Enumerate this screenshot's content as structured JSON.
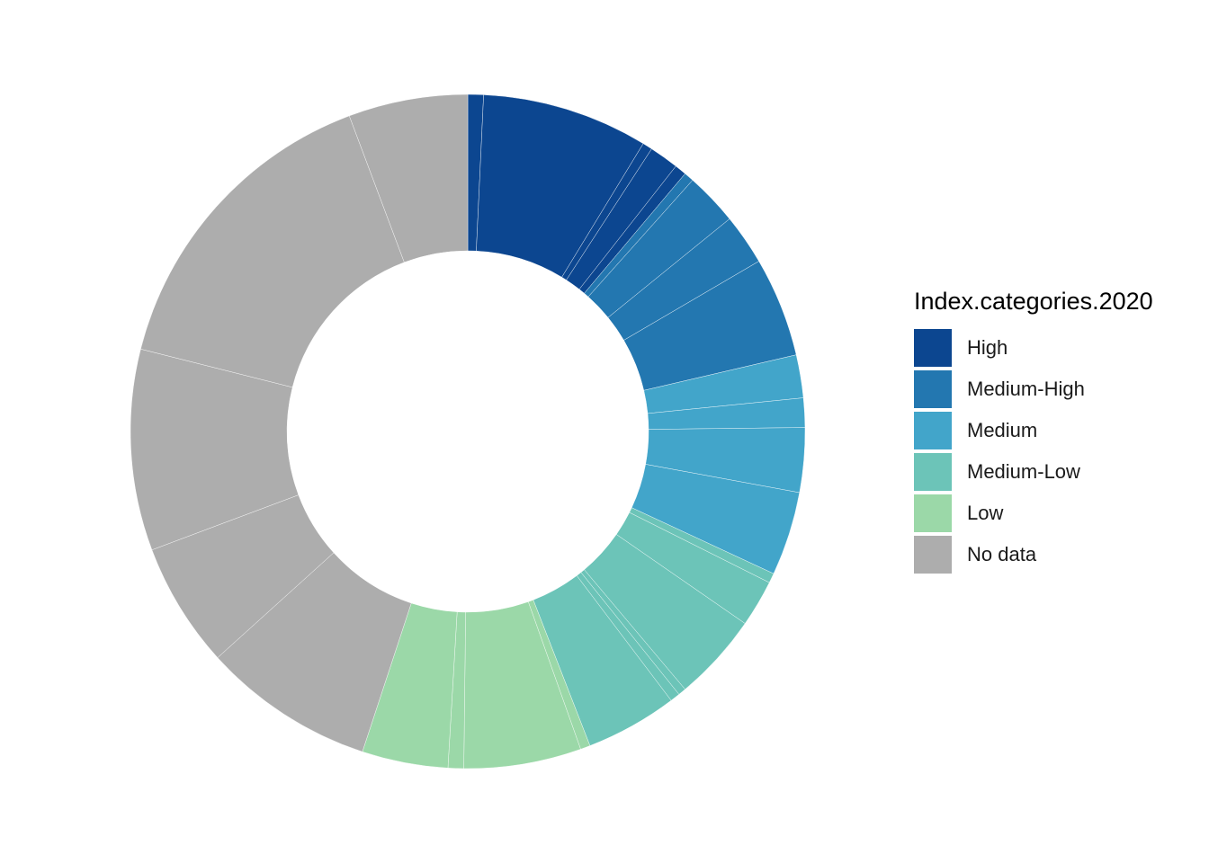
{
  "chart_data": {
    "type": "pie",
    "title": "",
    "legend": {
      "title": "Index.categories.2020",
      "position": "right"
    },
    "categories": [
      {
        "name": "High",
        "color": "#0C4690"
      },
      {
        "name": "Medium-High",
        "color": "#2377B0"
      },
      {
        "name": "Medium",
        "color": "#42A5CA"
      },
      {
        "name": "Medium-Low",
        "color": "#6CC4B8"
      },
      {
        "name": "Low",
        "color": "#9BD8A8"
      },
      {
        "name": "No data",
        "color": "#ADADAD"
      }
    ],
    "slices": [
      {
        "category": "High",
        "value": 0.8
      },
      {
        "category": "High",
        "value": 8.5
      },
      {
        "category": "High",
        "value": 0.5
      },
      {
        "category": "High",
        "value": 1.5
      },
      {
        "category": "High",
        "value": 0.6
      },
      {
        "category": "Medium-High",
        "value": 0.5
      },
      {
        "category": "Medium-High",
        "value": 2.7
      },
      {
        "category": "Medium-High",
        "value": 2.6
      },
      {
        "category": "Medium-High",
        "value": 5.1
      },
      {
        "category": "Medium",
        "value": 2.2
      },
      {
        "category": "Medium",
        "value": 1.5
      },
      {
        "category": "Medium",
        "value": 3.3
      },
      {
        "category": "Medium",
        "value": 4.3
      },
      {
        "category": "Medium-Low",
        "value": 0.5
      },
      {
        "category": "Medium-Low",
        "value": 2.4
      },
      {
        "category": "Medium-Low",
        "value": 4.5
      },
      {
        "category": "Medium-Low",
        "value": 0.4
      },
      {
        "category": "Medium-Low",
        "value": 0.5
      },
      {
        "category": "Medium-Low",
        "value": 4.7
      },
      {
        "category": "Low",
        "value": 0.5
      },
      {
        "category": "Low",
        "value": 6.0
      },
      {
        "category": "Low",
        "value": 0.8
      },
      {
        "category": "Low",
        "value": 4.4
      },
      {
        "category": "No data",
        "value": 8.8
      },
      {
        "category": "No data",
        "value": 6.4
      },
      {
        "category": "No data",
        "value": 10.3
      },
      {
        "category": "No data",
        "value": 16.4
      },
      {
        "category": "No data",
        "value": 6.1
      }
    ]
  }
}
